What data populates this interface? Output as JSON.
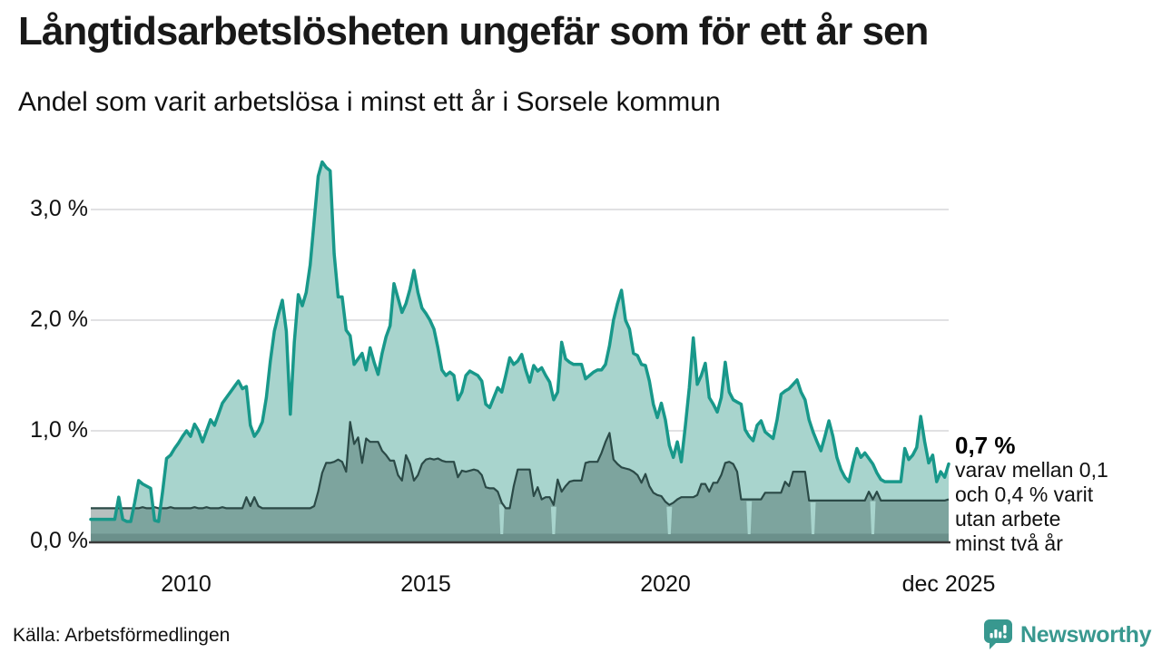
{
  "header": {
    "title": "Långtidsarbetslösheten ungefär som för ett år sen",
    "subtitle": "Andel som varit arbetslösa i minst ett år i Sorsele kommun"
  },
  "annotation": {
    "value_label": "0,7 %",
    "lines": [
      "varav mellan 0,1",
      "och 0,4 % varit",
      "utan arbete",
      "minst två år"
    ]
  },
  "footer": {
    "source": "Källa: Arbetsförmedlingen",
    "brand": "Newsworthy"
  },
  "colors": {
    "teal_line": "#18988a",
    "teal_fill": "#a8d4cd",
    "dark_line": "#2b4a47",
    "dark_fill": "rgba(45,74,71,0.35)",
    "bottom_band_fill": "rgba(45,74,71,0.22)",
    "gridline": "#e1e1e3",
    "baseline": "#3b3b3b",
    "brand_teal": "#38988f"
  },
  "chart_data": {
    "type": "area",
    "title": "Andel som varit arbetslösa i minst ett år i Sorsele kommun",
    "x_unit": "month",
    "x_range": [
      "2008-01",
      "2025-12"
    ],
    "ylim": [
      0,
      3.5
    ],
    "grid": "horizontal",
    "y_ticks": [
      {
        "label": "0,0 %",
        "value": 0
      },
      {
        "label": "1,0 %",
        "value": 1
      },
      {
        "label": "2,0 %",
        "value": 2
      },
      {
        "label": "3,0 %",
        "value": 3
      }
    ],
    "x_ticks": [
      {
        "label": "2010",
        "month_index": 24
      },
      {
        "label": "2015",
        "month_index": 84
      },
      {
        "label": "2020",
        "month_index": 144
      },
      {
        "label": "dec 2025",
        "month_index": 215
      }
    ],
    "lower_band_pct": 0.07,
    "notch_month_indices": [
      103,
      116,
      145,
      165,
      181,
      196
    ],
    "series": [
      {
        "name": "Andel arbetslösa minst ett år",
        "last_value_label": "0,7 %",
        "values": [
          0.2,
          0.2,
          0.2,
          0.2,
          0.2,
          0.2,
          0.2,
          0.4,
          0.2,
          0.18,
          0.18,
          0.35,
          0.55,
          0.52,
          0.5,
          0.48,
          0.19,
          0.18,
          0.45,
          0.75,
          0.78,
          0.84,
          0.89,
          0.95,
          1.0,
          0.95,
          1.06,
          1.0,
          0.9,
          1.0,
          1.1,
          1.05,
          1.15,
          1.25,
          1.3,
          1.35,
          1.4,
          1.45,
          1.38,
          1.4,
          1.05,
          0.95,
          1.0,
          1.08,
          1.3,
          1.63,
          1.9,
          2.05,
          2.18,
          1.9,
          1.15,
          1.8,
          2.23,
          2.13,
          2.25,
          2.5,
          2.9,
          3.3,
          3.43,
          3.38,
          3.35,
          2.6,
          2.21,
          2.21,
          1.91,
          1.86,
          1.6,
          1.65,
          1.7,
          1.55,
          1.75,
          1.62,
          1.51,
          1.7,
          1.85,
          1.95,
          2.33,
          2.2,
          2.07,
          2.15,
          2.28,
          2.45,
          2.25,
          2.11,
          2.06,
          2.0,
          1.92,
          1.75,
          1.55,
          1.5,
          1.53,
          1.5,
          1.28,
          1.35,
          1.5,
          1.54,
          1.52,
          1.5,
          1.45,
          1.24,
          1.21,
          1.3,
          1.39,
          1.35,
          1.5,
          1.66,
          1.6,
          1.63,
          1.69,
          1.55,
          1.44,
          1.59,
          1.54,
          1.57,
          1.5,
          1.44,
          1.28,
          1.35,
          1.8,
          1.65,
          1.62,
          1.6,
          1.6,
          1.6,
          1.47,
          1.5,
          1.53,
          1.55,
          1.55,
          1.6,
          1.77,
          2.0,
          2.15,
          2.27,
          2.0,
          1.92,
          1.7,
          1.68,
          1.6,
          1.59,
          1.45,
          1.24,
          1.12,
          1.25,
          1.1,
          0.87,
          0.76,
          0.9,
          0.72,
          1.04,
          1.39,
          1.84,
          1.42,
          1.5,
          1.61,
          1.3,
          1.24,
          1.17,
          1.3,
          1.62,
          1.35,
          1.28,
          1.26,
          1.24,
          1.01,
          0.95,
          0.91,
          1.05,
          1.09,
          0.99,
          0.96,
          0.93,
          1.1,
          1.33,
          1.36,
          1.38,
          1.42,
          1.46,
          1.35,
          1.28,
          1.1,
          0.99,
          0.9,
          0.82,
          0.95,
          1.09,
          0.95,
          0.76,
          0.65,
          0.58,
          0.54,
          0.7,
          0.84,
          0.76,
          0.8,
          0.75,
          0.7,
          0.62,
          0.56,
          0.54,
          0.54,
          0.54,
          0.54,
          0.54,
          0.84,
          0.74,
          0.78,
          0.85,
          1.13,
          0.9,
          0.71,
          0.78,
          0.54,
          0.63,
          0.58,
          0.7
        ]
      },
      {
        "name": "varav utan arbete minst två år (övre gräns, 0,1–0,4 % i dec 2025)",
        "values": [
          0.3,
          0.3,
          0.3,
          0.3,
          0.3,
          0.3,
          0.3,
          0.3,
          0.3,
          0.3,
          0.3,
          0.3,
          0.3,
          0.31,
          0.3,
          0.3,
          0.31,
          0.3,
          0.3,
          0.3,
          0.31,
          0.3,
          0.3,
          0.3,
          0.3,
          0.3,
          0.31,
          0.3,
          0.3,
          0.31,
          0.3,
          0.3,
          0.3,
          0.31,
          0.3,
          0.3,
          0.3,
          0.3,
          0.3,
          0.4,
          0.32,
          0.4,
          0.32,
          0.3,
          0.3,
          0.3,
          0.3,
          0.3,
          0.3,
          0.3,
          0.3,
          0.3,
          0.3,
          0.3,
          0.3,
          0.3,
          0.32,
          0.45,
          0.62,
          0.71,
          0.71,
          0.72,
          0.74,
          0.72,
          0.63,
          1.08,
          0.88,
          0.94,
          0.71,
          0.93,
          0.9,
          0.9,
          0.9,
          0.82,
          0.78,
          0.73,
          0.73,
          0.6,
          0.55,
          0.78,
          0.7,
          0.55,
          0.6,
          0.7,
          0.74,
          0.75,
          0.74,
          0.75,
          0.73,
          0.72,
          0.72,
          0.72,
          0.58,
          0.64,
          0.63,
          0.64,
          0.65,
          0.64,
          0.6,
          0.49,
          0.48,
          0.48,
          0.45,
          0.35,
          0.3,
          0.3,
          0.5,
          0.65,
          0.65,
          0.65,
          0.65,
          0.41,
          0.49,
          0.38,
          0.4,
          0.4,
          0.33,
          0.56,
          0.45,
          0.5,
          0.54,
          0.55,
          0.55,
          0.55,
          0.71,
          0.72,
          0.72,
          0.72,
          0.8,
          0.9,
          0.98,
          0.74,
          0.7,
          0.67,
          0.66,
          0.65,
          0.63,
          0.6,
          0.53,
          0.61,
          0.5,
          0.44,
          0.42,
          0.41,
          0.36,
          0.33,
          0.35,
          0.38,
          0.4,
          0.4,
          0.4,
          0.4,
          0.42,
          0.52,
          0.52,
          0.45,
          0.53,
          0.53,
          0.6,
          0.71,
          0.72,
          0.7,
          0.63,
          0.38,
          0.38,
          0.38,
          0.38,
          0.38,
          0.38,
          0.44,
          0.44,
          0.44,
          0.44,
          0.44,
          0.54,
          0.5,
          0.63,
          0.63,
          0.63,
          0.63,
          0.37,
          0.37,
          0.37,
          0.37,
          0.37,
          0.37,
          0.37,
          0.37,
          0.37,
          0.37,
          0.37,
          0.37,
          0.37,
          0.37,
          0.37,
          0.45,
          0.38,
          0.45,
          0.37,
          0.37,
          0.37,
          0.37,
          0.37,
          0.37,
          0.37,
          0.37,
          0.37,
          0.37,
          0.37,
          0.37,
          0.37,
          0.37,
          0.37,
          0.37,
          0.37,
          0.38
        ]
      }
    ]
  }
}
